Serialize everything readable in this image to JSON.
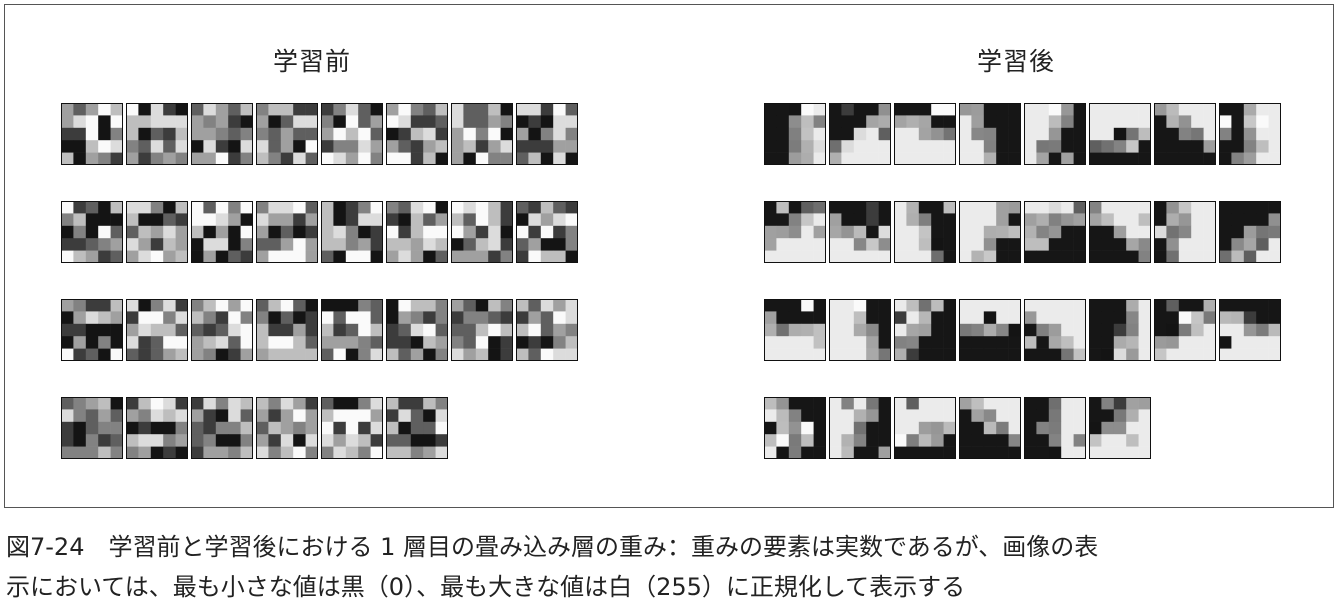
{
  "figure": {
    "panel_left_title": "学習前",
    "panel_right_title": "学習後",
    "caption_line1": "図7-24　学習前と学習後における 1 層目の畳み込み層の重み：重みの要素は実数であるが、画像の表",
    "caption_line2": "示においては、最も小さな値は黒（0）、最も大きな値は白（255）に正規化して表示する",
    "rows": [
      8,
      8,
      8,
      6
    ],
    "filter_grid": 5
  },
  "colors": {
    "frame_border": "#555555",
    "cell_black": "#141414",
    "cell_white": "#ffffff"
  }
}
